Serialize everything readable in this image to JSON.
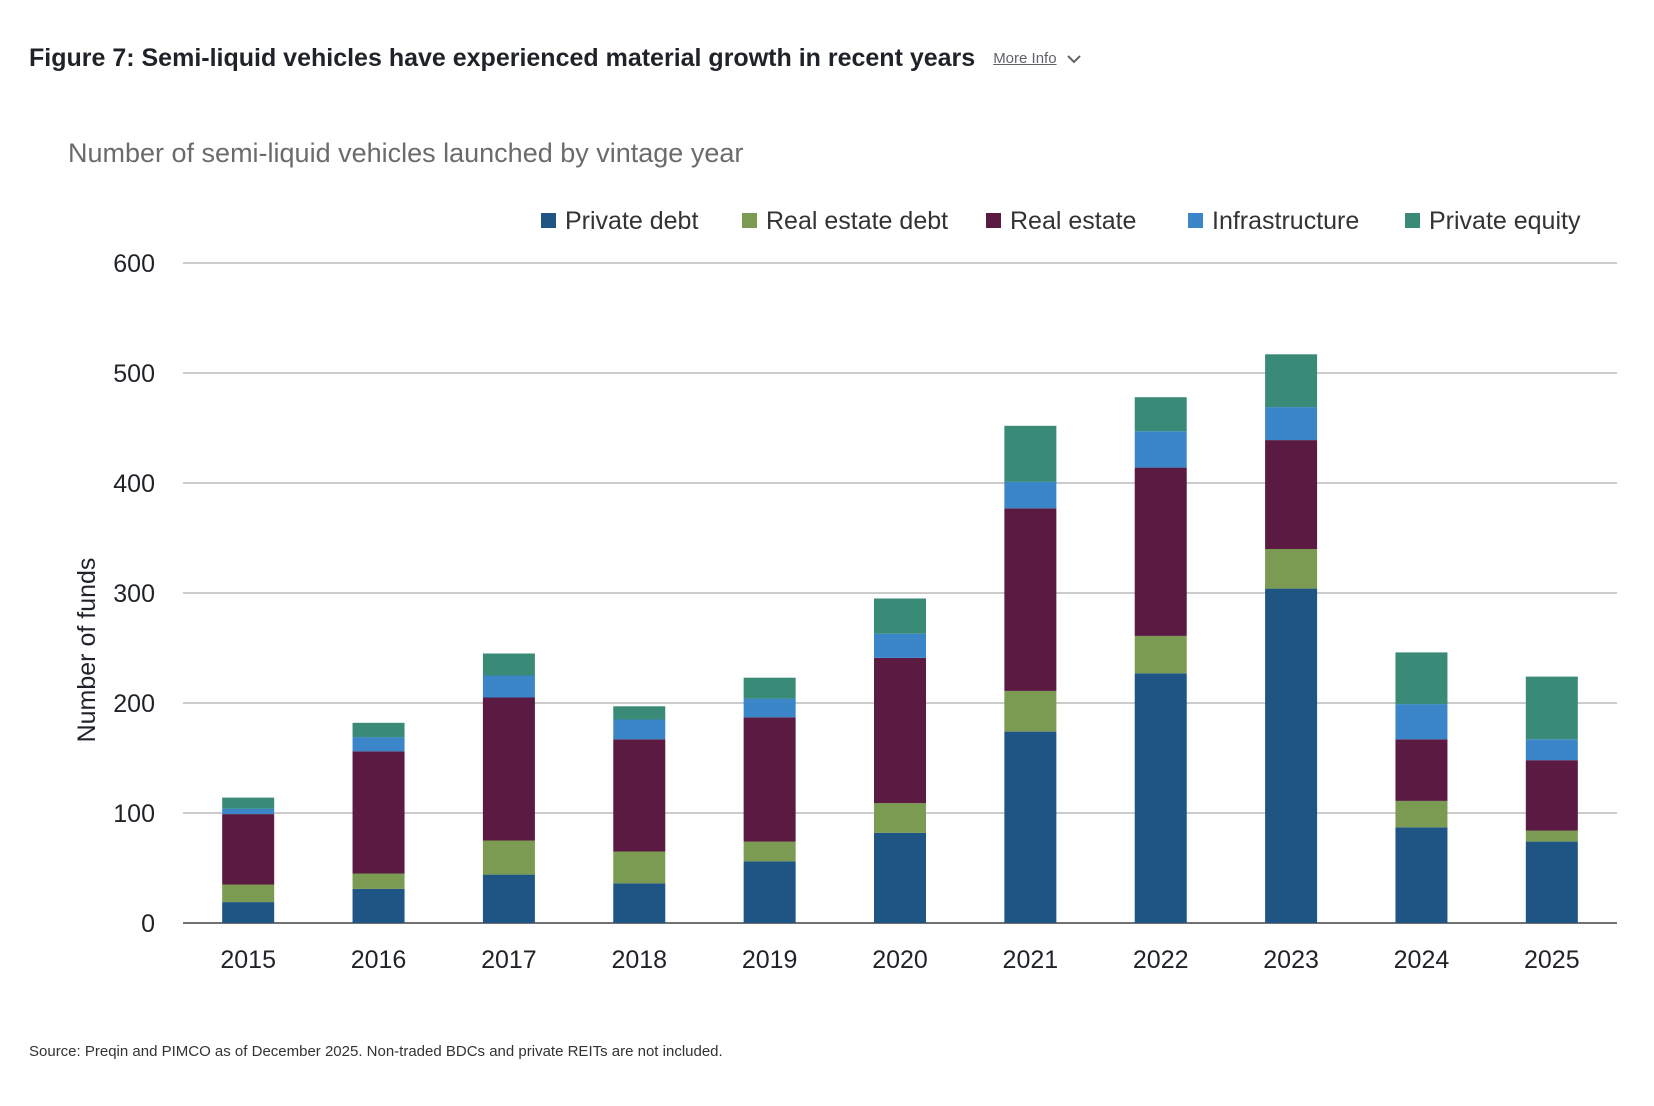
{
  "header": {
    "title": "Figure 7: Semi-liquid vehicles have experienced material growth in recent years",
    "more_info_label": "More Info",
    "more_info_icon": "chevron-down-icon"
  },
  "footer": {
    "source": "Source: Preqin and PIMCO as of December 2025. Non-traded BDCs and private REITs are not included."
  },
  "colors": {
    "private_debt": "#1f5585",
    "real_estate_debt": "#7b9a52",
    "real_estate": "#5a1a42",
    "infrastructure": "#3a86c8",
    "private_equity": "#3a8a78",
    "grid": "#8c8c8c"
  },
  "chart_data": {
    "type": "bar",
    "stacked": true,
    "title": "Number of semi-liquid vehicles launched by vintage year",
    "xlabel": "",
    "ylabel": "Number of funds",
    "ylim": [
      0,
      600
    ],
    "yticks": [
      0,
      100,
      200,
      300,
      400,
      500,
      600
    ],
    "grid": true,
    "legend_position": "top",
    "categories": [
      "2015",
      "2016",
      "2017",
      "2018",
      "2019",
      "2020",
      "2021",
      "2022",
      "2023",
      "2024",
      "2025"
    ],
    "series": [
      {
        "name": "Private debt",
        "color": "#1f5585",
        "values": [
          19,
          31,
          44,
          36,
          56,
          82,
          174,
          227,
          304,
          87,
          74
        ]
      },
      {
        "name": "Real estate debt",
        "color": "#7b9a52",
        "values": [
          16,
          14,
          31,
          29,
          18,
          27,
          37,
          34,
          36,
          24,
          10
        ]
      },
      {
        "name": "Real estate",
        "color": "#5a1a42",
        "values": [
          64,
          111,
          130,
          102,
          113,
          132,
          166,
          153,
          99,
          56,
          64
        ]
      },
      {
        "name": "Infrastructure",
        "color": "#3a86c8",
        "values": [
          5,
          13,
          20,
          18,
          17,
          22,
          24,
          33,
          30,
          32,
          19
        ]
      },
      {
        "name": "Private equity",
        "color": "#3a8a78",
        "values": [
          10,
          13,
          20,
          12,
          19,
          32,
          51,
          31,
          48,
          47,
          57
        ]
      }
    ]
  }
}
